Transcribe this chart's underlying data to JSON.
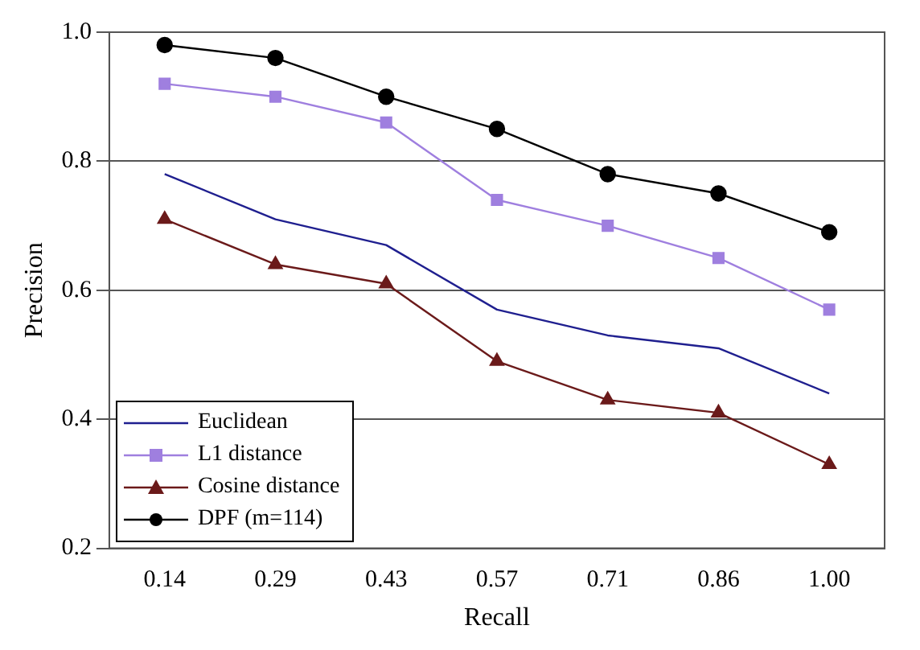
{
  "chart_data": {
    "type": "line",
    "xlabel": "Recall",
    "ylabel": "Precision",
    "categories": [
      "0.14",
      "0.29",
      "0.43",
      "0.57",
      "0.71",
      "0.86",
      "1.00"
    ],
    "ylim": [
      0.2,
      1.0
    ],
    "yticks": [
      {
        "value": 0.2,
        "label": "0.2"
      },
      {
        "value": 0.4,
        "label": "0.4"
      },
      {
        "value": 0.6,
        "label": "0.6"
      },
      {
        "value": 0.8,
        "label": "0.8"
      },
      {
        "value": 1.0,
        "label": "1.0"
      }
    ],
    "grid": "y",
    "legend": "bottom left",
    "line_style": "solid",
    "series": [
      {
        "name": "Euclidean",
        "color": "#1f1f8f",
        "marker": "none",
        "values": [
          0.78,
          0.71,
          0.67,
          0.57,
          0.53,
          0.51,
          0.44
        ]
      },
      {
        "name": "L1 distance",
        "color": "#9f7fdf",
        "marker": "square",
        "values": [
          0.92,
          0.9,
          0.86,
          0.74,
          0.7,
          0.65,
          0.57
        ]
      },
      {
        "name": "Cosine distance",
        "color": "#6b1a1a",
        "marker": "triangle",
        "values": [
          0.71,
          0.64,
          0.61,
          0.49,
          0.43,
          0.41,
          0.33
        ]
      },
      {
        "name": "DPF (m=114)",
        "color": "#000000",
        "marker": "circle",
        "values": [
          0.98,
          0.96,
          0.9,
          0.85,
          0.78,
          0.75,
          0.69
        ]
      }
    ]
  }
}
